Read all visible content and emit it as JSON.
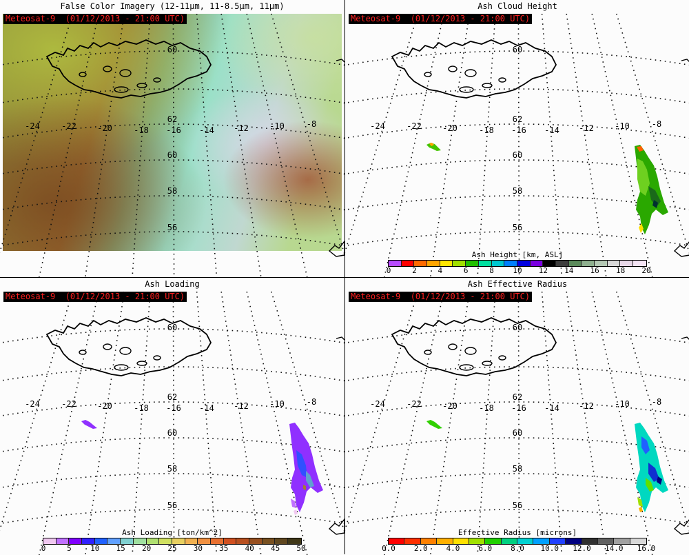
{
  "stamp": "Meteosat-9  (01/12/2013 - 21:00 UTC)",
  "panels": {
    "false_color": {
      "title": "False Color Imagery (12-11μm, 11-8.5μm, 11μm)"
    },
    "height": {
      "title": "Ash Cloud Height"
    },
    "loading": {
      "title": "Ash Loading"
    },
    "radius": {
      "title": "Ash Effective Radius"
    }
  },
  "grid": {
    "lon_labels": [
      "-24",
      "-22",
      "-20",
      "-18",
      "-16",
      "-14",
      "-12",
      "-10",
      "-8"
    ],
    "lat_labels": [
      "62",
      "60",
      "58",
      "56"
    ],
    "top_lat_label": "60"
  },
  "colorbars": {
    "height": {
      "label": "Ash Height [km, ASL]",
      "ticks": [
        "0",
        "2",
        "4",
        "6",
        "8",
        "10",
        "12",
        "14",
        "16",
        "18",
        "20"
      ],
      "colors": [
        "#b84cff",
        "#ff0000",
        "#ff6a00",
        "#ffa500",
        "#ffe600",
        "#a0e000",
        "#22c000",
        "#00e0a0",
        "#00c8d0",
        "#0080ff",
        "#0000e0",
        "#7a00e0",
        "#000000",
        "#3d3d3d",
        "#5a8a5a",
        "#8fb08f",
        "#b4c8b4",
        "#d8d8d8",
        "#e8d8e8",
        "#f4e4f4"
      ]
    },
    "loading": {
      "label": "Ash Loading [ton/km^2]",
      "ticks": [
        "0",
        "5",
        "10",
        "15",
        "20",
        "25",
        "30",
        "35",
        "40",
        "45",
        "50"
      ],
      "colors": [
        "#f0c8f0",
        "#c070ff",
        "#8000ff",
        "#3020ff",
        "#2060ff",
        "#60a0ff",
        "#80d0d0",
        "#a0e0a0",
        "#b0e070",
        "#d0e060",
        "#e8d060",
        "#f0b050",
        "#f09040",
        "#e87030",
        "#d05020",
        "#b85020",
        "#985020",
        "#785020",
        "#604820",
        "#403818"
      ]
    },
    "radius": {
      "label": "Effective Radius [microns]",
      "ticks": [
        "0.0",
        "2.0",
        "4.0",
        "6.0",
        "8.0",
        "10.0",
        "12.0",
        "14.0",
        "16.0"
      ],
      "colors": [
        "#ff0000",
        "#ff3000",
        "#ff8000",
        "#ffb000",
        "#ffe000",
        "#a0e000",
        "#20d000",
        "#00d080",
        "#00d0d0",
        "#00a0ff",
        "#2040ff",
        "#000080",
        "#303030",
        "#606060",
        "#a0a0a0",
        "#d8d8d8"
      ]
    }
  },
  "colors": {
    "stamp_text": "#ff2020",
    "stamp_bg": "#000000"
  }
}
